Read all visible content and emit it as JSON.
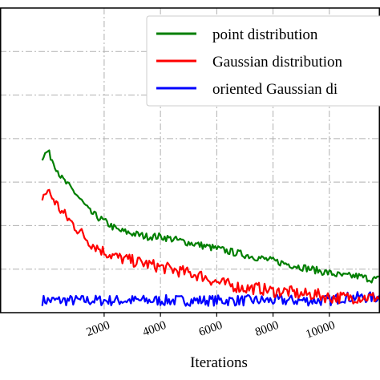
{
  "chart_data": {
    "type": "line",
    "xlabel": "Iterations",
    "ylabel": "",
    "title": "",
    "xlim": [
      -1700,
      11800
    ],
    "ylim": [
      0,
      1
    ],
    "xticks": [
      2000,
      4000,
      6000,
      8000,
      10000
    ],
    "xtick_labels": [
      "2000",
      "4000",
      "6000",
      "8000",
      "10000"
    ],
    "grid": true,
    "grid_style": "dash-dot",
    "legend_position": "top-right",
    "series": [
      {
        "name": "point distribution",
        "color": "#007f00",
        "x": [
          -200,
          0,
          500,
          1000,
          1500,
          2000,
          2500,
          3000,
          3500,
          4000,
          4500,
          5000,
          5500,
          6000,
          6500,
          7000,
          7500,
          8000,
          8500,
          9000,
          9500,
          10000,
          10500,
          11000,
          11500,
          11800
        ],
        "values": [
          0.51,
          0.53,
          0.44,
          0.39,
          0.33,
          0.3,
          0.27,
          0.26,
          0.25,
          0.25,
          0.24,
          0.23,
          0.22,
          0.21,
          0.2,
          0.19,
          0.18,
          0.17,
          0.16,
          0.15,
          0.14,
          0.13,
          0.12,
          0.12,
          0.11,
          0.11
        ]
      },
      {
        "name": "Gaussian distribution",
        "color": "#ff0000",
        "x": [
          -200,
          0,
          500,
          1000,
          1500,
          2000,
          2500,
          3000,
          3500,
          4000,
          4500,
          5000,
          5500,
          6000,
          6500,
          7000,
          7500,
          8000,
          8500,
          9000,
          9500,
          10000,
          10500,
          11000,
          11500,
          11800
        ],
        "values": [
          0.38,
          0.4,
          0.33,
          0.28,
          0.23,
          0.2,
          0.18,
          0.17,
          0.16,
          0.15,
          0.14,
          0.13,
          0.12,
          0.1,
          0.09,
          0.08,
          0.08,
          0.07,
          0.07,
          0.06,
          0.06,
          0.05,
          0.05,
          0.05,
          0.05,
          0.05
        ]
      },
      {
        "name": "oriented Gaussian di",
        "color": "#0000ff",
        "x": [
          -200,
          0,
          500,
          1000,
          1500,
          2000,
          2500,
          3000,
          3500,
          4000,
          4500,
          5000,
          5500,
          6000,
          6500,
          7000,
          7500,
          8000,
          8500,
          9000,
          9500,
          10000,
          10500,
          11000,
          11500,
          11800
        ],
        "values": [
          0.04,
          0.04,
          0.04,
          0.04,
          0.04,
          0.04,
          0.04,
          0.04,
          0.04,
          0.04,
          0.04,
          0.04,
          0.04,
          0.04,
          0.04,
          0.04,
          0.04,
          0.04,
          0.04,
          0.04,
          0.04,
          0.04,
          0.05,
          0.05,
          0.05,
          0.05
        ]
      }
    ]
  }
}
